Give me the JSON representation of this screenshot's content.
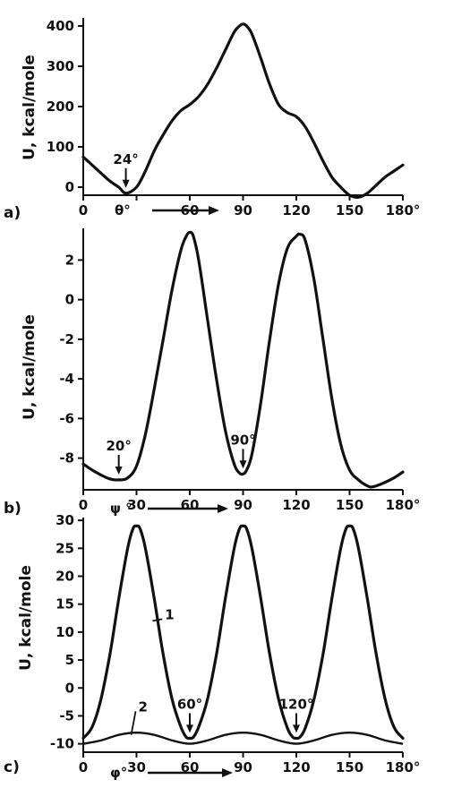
{
  "chart_data": [
    {
      "type": "line",
      "panel_label": "a)",
      "ylabel": "U, kcal/mole",
      "xlabel": "θ°",
      "xlim": [
        0,
        180
      ],
      "ylim": [
        -20,
        420
      ],
      "xticks": [
        0,
        30,
        60,
        90,
        120,
        150,
        180
      ],
      "xtick_labels": [
        "0",
        "",
        "60",
        "90",
        "120",
        "150",
        "180°"
      ],
      "yticks": [
        0,
        100,
        200,
        300,
        400
      ],
      "ytick_labels": [
        "0",
        "100",
        "200",
        "300",
        "400"
      ],
      "series": [
        {
          "x": [
            0,
            5,
            10,
            15,
            20,
            24,
            30,
            35,
            40,
            45,
            50,
            55,
            60,
            65,
            70,
            75,
            80,
            85,
            88,
            90,
            92,
            95,
            100,
            105,
            110,
            115,
            120,
            125,
            130,
            135,
            140,
            145,
            150,
            155,
            160,
            165,
            170,
            175,
            180
          ],
          "y": [
            75,
            55,
            35,
            15,
            0,
            -15,
            0,
            40,
            90,
            130,
            165,
            190,
            205,
            225,
            255,
            295,
            340,
            385,
            400,
            405,
            400,
            380,
            320,
            255,
            205,
            185,
            175,
            150,
            110,
            65,
            25,
            0,
            -20,
            -25,
            -15,
            5,
            25,
            40,
            55
          ]
        }
      ],
      "annotations": [
        {
          "text": "24°",
          "x": 24,
          "y": -15
        }
      ]
    },
    {
      "type": "line",
      "panel_label": "b)",
      "ylabel": "U, kcal/mole",
      "xlabel": "ψ °",
      "xlim": [
        0,
        180
      ],
      "ylim": [
        -9.6,
        3.6
      ],
      "xticks": [
        0,
        30,
        60,
        90,
        120,
        150,
        180
      ],
      "xtick_labels": [
        "0",
        "30",
        "60",
        "90",
        "120",
        "150",
        "180°"
      ],
      "yticks": [
        2,
        0,
        -2,
        -4,
        -6,
        -8
      ],
      "ytick_labels": [
        "2",
        "0",
        "-2",
        "-4",
        "-6",
        "-8"
      ],
      "series": [
        {
          "x": [
            0,
            5,
            10,
            15,
            20,
            25,
            30,
            35,
            40,
            45,
            50,
            55,
            58,
            60,
            62,
            65,
            70,
            75,
            80,
            85,
            88,
            90,
            92,
            95,
            100,
            105,
            110,
            115,
            120,
            122,
            125,
            130,
            135,
            140,
            145,
            150,
            155,
            160,
            163,
            168,
            175,
            180
          ],
          "y": [
            -8.3,
            -8.6,
            -8.85,
            -9.05,
            -9.1,
            -9.0,
            -8.4,
            -6.8,
            -4.5,
            -2.0,
            0.5,
            2.5,
            3.2,
            3.4,
            3.2,
            2.0,
            -1.0,
            -4.0,
            -6.6,
            -8.3,
            -8.75,
            -8.8,
            -8.6,
            -7.8,
            -5.2,
            -2.0,
            0.8,
            2.6,
            3.2,
            3.3,
            3.0,
            1.0,
            -2.0,
            -5.0,
            -7.3,
            -8.6,
            -9.1,
            -9.4,
            -9.45,
            -9.3,
            -9.0,
            -8.7
          ]
        }
      ],
      "annotations": [
        {
          "text": "20°",
          "x": 20,
          "y": -9.1
        },
        {
          "text": "90°",
          "x": 90,
          "y": -8.8
        }
      ]
    },
    {
      "type": "line",
      "panel_label": "c)",
      "ylabel": "U, kcal/mole",
      "xlabel": "φ°",
      "xlim": [
        0,
        180
      ],
      "ylim": [
        -11.5,
        30.5
      ],
      "xticks": [
        0,
        30,
        60,
        90,
        120,
        150,
        180
      ],
      "xtick_labels": [
        "0",
        "30",
        "60",
        "90",
        "120",
        "150",
        "180°"
      ],
      "yticks": [
        30,
        25,
        20,
        15,
        10,
        5,
        0,
        -5,
        -10
      ],
      "ytick_labels": [
        "30",
        "25",
        "20",
        "15",
        "10",
        "5",
        "0",
        "-5",
        "-10"
      ],
      "series": [
        {
          "name": "1",
          "x": [
            0,
            5,
            10,
            15,
            20,
            25,
            28,
            30,
            32,
            35,
            40,
            45,
            50,
            55,
            58,
            60,
            62,
            65,
            70,
            75,
            80,
            85,
            88,
            90,
            92,
            95,
            100,
            105,
            110,
            115,
            118,
            120,
            122,
            125,
            130,
            135,
            140,
            145,
            148,
            150,
            152,
            155,
            160,
            165,
            170,
            175,
            180
          ],
          "y": [
            -9,
            -7,
            -2,
            6,
            16,
            25,
            28.5,
            29,
            28.5,
            25,
            16,
            6,
            -2,
            -7,
            -8.8,
            -9,
            -8.8,
            -7,
            -2,
            6,
            16,
            25,
            28.5,
            29,
            28.5,
            25,
            16,
            6,
            -2,
            -7.2,
            -8.8,
            -9,
            -8.8,
            -7.2,
            -2,
            6,
            16,
            25,
            28.5,
            29,
            28.5,
            25,
            16,
            6,
            -2,
            -7,
            -9
          ]
        },
        {
          "name": "2",
          "x": [
            0,
            10,
            20,
            30,
            40,
            50,
            60,
            70,
            80,
            90,
            100,
            110,
            120,
            130,
            140,
            150,
            160,
            170,
            180
          ],
          "y": [
            -10,
            -9.4,
            -8.4,
            -8.0,
            -8.4,
            -9.4,
            -10,
            -9.4,
            -8.4,
            -8.0,
            -8.4,
            -9.4,
            -10,
            -9.4,
            -8.4,
            -8.0,
            -8.4,
            -9.4,
            -10
          ]
        }
      ],
      "annotations": [
        {
          "text": "60°",
          "x": 60,
          "y": -9
        },
        {
          "text": "120°",
          "x": 120,
          "y": -9
        }
      ]
    }
  ]
}
